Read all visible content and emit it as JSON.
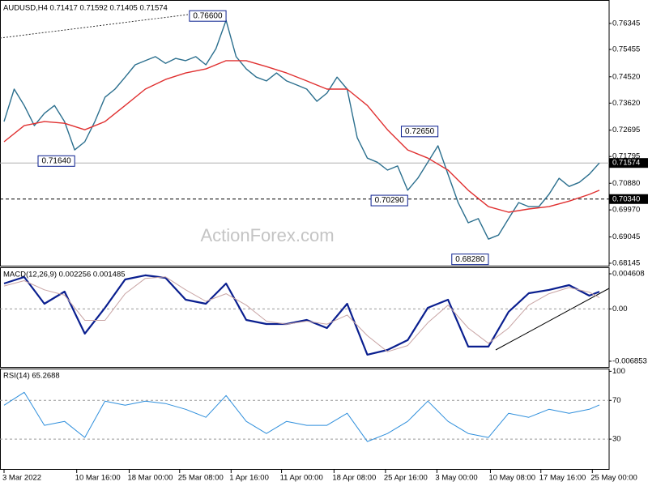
{
  "chart_data": [
    {
      "type": "line",
      "title": "AUDUSD,H4  0.71417 0.71592 0.71405 0.71574",
      "watermark": "ActionForex.com",
      "series": [
        {
          "color": "#2b6f8e",
          "x": [
            0,
            1,
            2,
            3,
            4,
            5,
            6,
            7,
            8,
            9,
            10,
            11,
            12,
            13,
            14,
            15,
            16,
            17,
            18,
            19,
            20,
            21,
            22,
            23,
            24,
            25,
            26,
            27,
            28,
            29,
            30,
            31,
            32,
            33,
            34,
            35,
            36,
            37,
            38,
            39,
            40,
            41,
            42,
            43,
            44,
            45,
            46,
            47,
            48,
            49,
            50,
            51,
            52,
            53,
            54,
            55,
            56,
            57,
            58,
            59
          ],
          "values": [
            0.7299,
            0.741,
            0.7354,
            0.7285,
            0.7327,
            0.7354,
            0.7299,
            0.7202,
            0.723,
            0.7299,
            0.7382,
            0.741,
            0.7451,
            0.7493,
            0.7507,
            0.7521,
            0.7498,
            0.7515,
            0.7507,
            0.7521,
            0.7493,
            0.7548,
            0.7645,
            0.7521,
            0.7479,
            0.7451,
            0.7438,
            0.7465,
            0.7438,
            0.7424,
            0.741,
            0.7368,
            0.7396,
            0.7451,
            0.741,
            0.7244,
            0.7174,
            0.716,
            0.7133,
            0.7147,
            0.7064,
            0.7105,
            0.716,
            0.7216,
            0.7119,
            0.7022,
            0.6953,
            0.6967,
            0.6897,
            0.6911,
            0.6967,
            0.7022,
            0.7008,
            0.7008,
            0.705,
            0.7105,
            0.7077,
            0.7091,
            0.7119,
            0.71574
          ]
        },
        {
          "color": "#e03030",
          "x": [
            0,
            2,
            4,
            6,
            8,
            10,
            12,
            14,
            16,
            18,
            20,
            22,
            24,
            26,
            28,
            30,
            32,
            34,
            36,
            38,
            40,
            42,
            44,
            46,
            48,
            50,
            52,
            54,
            56,
            58,
            59
          ],
          "values": [
            0.723,
            0.7285,
            0.7299,
            0.7293,
            0.7271,
            0.7299,
            0.7354,
            0.741,
            0.7443,
            0.7465,
            0.7479,
            0.7507,
            0.7507,
            0.7487,
            0.7465,
            0.7438,
            0.741,
            0.741,
            0.7354,
            0.7271,
            0.7202,
            0.7174,
            0.7133,
            0.7064,
            0.7008,
            0.6989,
            0.7,
            0.7008,
            0.7027,
            0.705,
            0.7064
          ]
        }
      ],
      "ylim": [
        0.6809,
        0.7709
      ],
      "yticks": [
        0.76345,
        0.75455,
        {
          "value": 0.7452,
          "label": "0.74520"
        },
        {
          "value": 0.7362,
          "label": "0.73620"
        },
        0.72695,
        0.71795,
        {
          "value": 0.7088,
          "label": "0.70880"
        },
        {
          "value": 0.6997,
          "label": "0.69970"
        },
        0.69045,
        0.68145
      ],
      "annotations": [
        {
          "x": 22,
          "value": 0.766,
          "label": "0.76600"
        },
        {
          "x": 7,
          "value": 0.7164,
          "label": "0.71640"
        },
        {
          "x": 43,
          "value": 0.7265,
          "label": "0.72650"
        },
        {
          "x": 40,
          "value": 0.7029,
          "label": "0.70290"
        },
        {
          "x": 48,
          "value": 0.6828,
          "label": "0.68280"
        }
      ],
      "hline": {
        "value": 0.7034,
        "label": "0.70340"
      },
      "current_price": 0.71574
    },
    {
      "type": "line",
      "title": "MACD(12,26,9) 0.002256 0.001485",
      "series": [
        {
          "color": "#0a1f8f",
          "width": 2.2,
          "x": [
            0,
            2,
            4,
            6,
            8,
            10,
            12,
            14,
            16,
            18,
            20,
            22,
            24,
            26,
            28,
            30,
            32,
            34,
            36,
            38,
            40,
            42,
            44,
            46,
            48,
            50,
            52,
            54,
            56,
            58,
            59
          ],
          "values": [
            0.00333,
            0.00418,
            0.00068,
            0.00227,
            -0.00324,
            0.00015,
            0.00386,
            0.0044,
            0.00408,
            0.00121,
            0.00068,
            0.00333,
            -0.00144,
            -0.00197,
            -0.00197,
            -0.00144,
            -0.0025,
            0.00068,
            -0.006,
            -0.00537,
            -0.00409,
            0.00015,
            0.00121,
            -0.00494,
            -0.00494,
            -0.00038,
            0.00206,
            0.00249,
            0.00312,
            0.00174,
            0.002256
          ]
        },
        {
          "color": "#c8a4a4",
          "width": 1,
          "x": [
            0,
            2,
            4,
            6,
            8,
            10,
            12,
            14,
            16,
            18,
            20,
            22,
            24,
            26,
            28,
            30,
            32,
            34,
            36,
            38,
            40,
            42,
            44,
            46,
            48,
            50,
            52,
            54,
            56,
            58,
            59
          ],
          "values": [
            0.003,
            0.0037,
            0.0025,
            0.0018,
            -0.0015,
            -0.0015,
            0.002,
            0.004,
            0.0042,
            0.0025,
            0.001,
            0.002,
            0.0005,
            -0.0016,
            -0.002,
            -0.0016,
            -0.002,
            -0.0008,
            -0.0035,
            -0.0056,
            -0.0048,
            -0.0018,
            0.0005,
            -0.0025,
            -0.0045,
            -0.0025,
            0.0005,
            0.002,
            0.0028,
            0.0022,
            0.001485
          ]
        }
      ],
      "ylim": [
        -0.0076,
        0.00535
      ],
      "yticks": [
        0.004608,
        {
          "value": 0,
          "label": "0.00"
        },
        -0.006853
      ],
      "levels": [
        0
      ]
    },
    {
      "type": "line",
      "title": "RSI(14) 65.2688",
      "series": [
        {
          "color": "#2f8fdc",
          "width": 1,
          "x": [
            0,
            2,
            4,
            6,
            8,
            10,
            12,
            14,
            16,
            18,
            20,
            22,
            24,
            26,
            28,
            30,
            32,
            34,
            36,
            38,
            40,
            42,
            44,
            46,
            48,
            50,
            52,
            54,
            56,
            58,
            59
          ],
          "values": [
            65.0,
            78.3,
            44.2,
            48.3,
            31.7,
            69.2,
            65.0,
            69.2,
            66.7,
            60.8,
            52.5,
            75.0,
            48.3,
            35.8,
            48.3,
            44.2,
            44.2,
            56.7,
            27.5,
            35.8,
            48.3,
            69.2,
            48.3,
            35.8,
            31.7,
            56.7,
            52.5,
            60.8,
            56.7,
            60.8,
            65.2688
          ]
        }
      ],
      "ylim": [
        0,
        102
      ],
      "yticks": [
        100,
        70,
        30
      ],
      "levels": [
        70,
        30
      ],
      "xlim": [
        0,
        59
      ],
      "xticks": [
        {
          "value": 0,
          "label": "3 Mar 2022"
        },
        {
          "value": 7.2,
          "label": "10 Mar 16:00"
        },
        {
          "value": 12.4,
          "label": "18 Mar 00:00"
        },
        {
          "value": 17.4,
          "label": "25 Mar 08:00"
        },
        {
          "value": 22.5,
          "label": "1 Apr 16:00"
        },
        {
          "value": 27.5,
          "label": "11 Apr 00:00"
        },
        {
          "value": 32.7,
          "label": "18 Apr 08:00"
        },
        {
          "value": 37.8,
          "label": "25 Apr 16:00"
        },
        {
          "value": 42.9,
          "label": "3 May 00:00"
        },
        {
          "value": 48.2,
          "label": "10 May 08:00"
        },
        {
          "value": 53.2,
          "label": "17 May 16:00"
        },
        {
          "value": 58.3,
          "label": "25 May 00:00"
        }
      ]
    }
  ]
}
